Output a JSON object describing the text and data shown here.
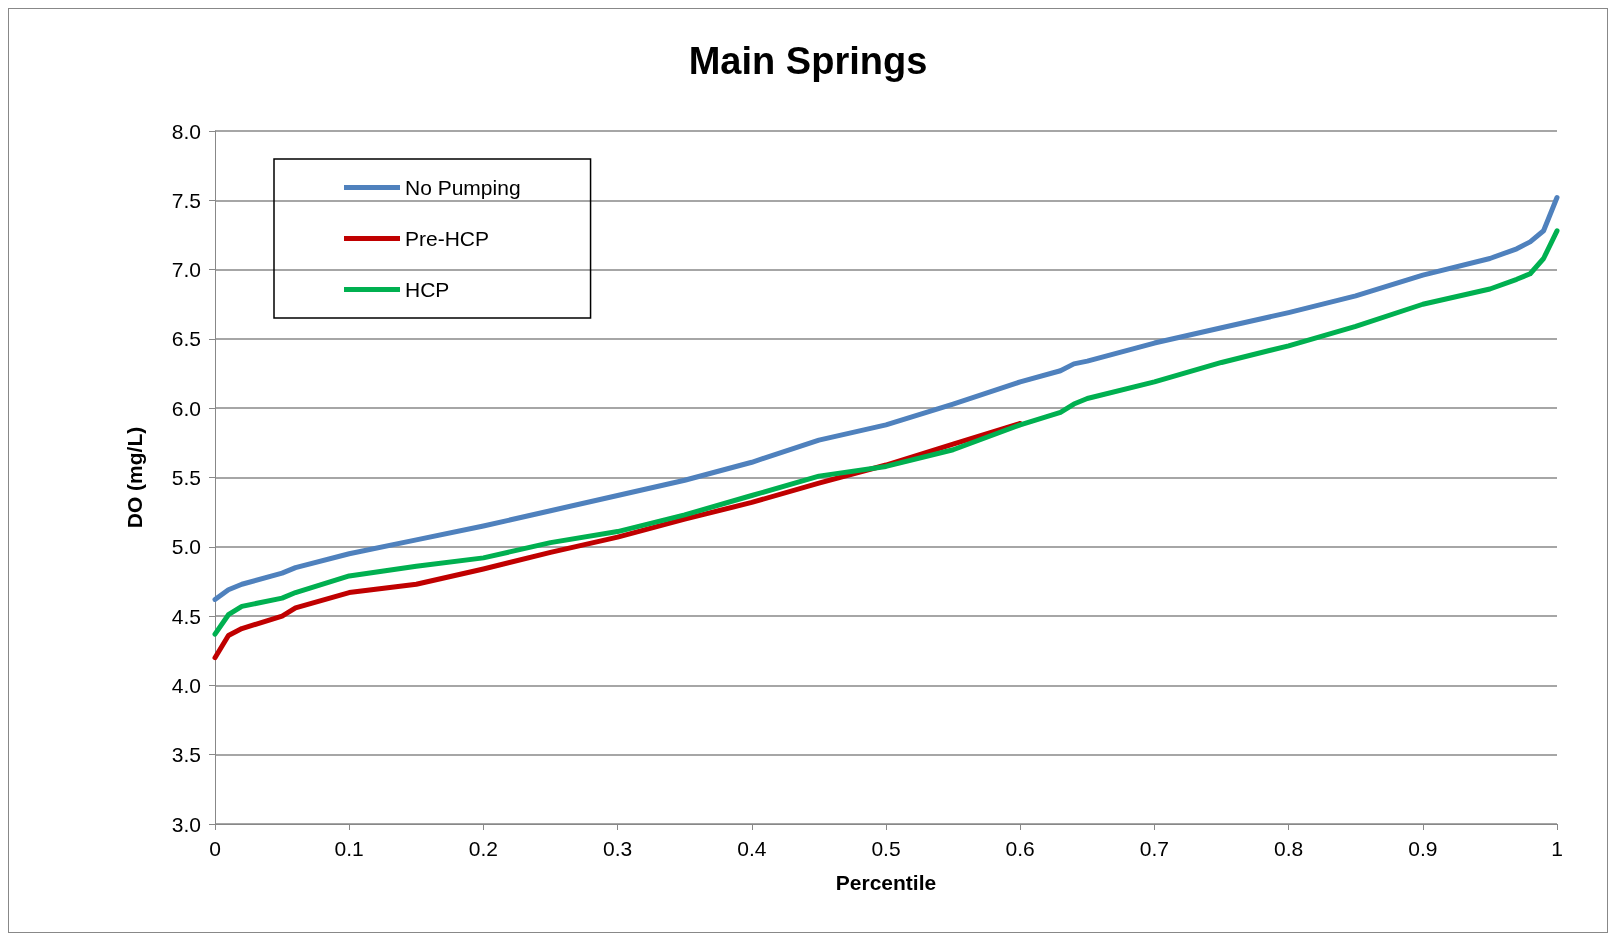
{
  "chart_data": {
    "type": "line",
    "title": "Main Springs",
    "xlabel": "Percentile",
    "ylabel": "DO (mg/L)",
    "xlim": [
      0,
      1
    ],
    "xticks": [
      0,
      0.1,
      0.2,
      0.3,
      0.4,
      0.5,
      0.6,
      0.7,
      0.8,
      0.9,
      1
    ],
    "ylim": [
      3,
      8
    ],
    "yticks": [
      {
        "value": 3,
        "label": "3.0"
      },
      {
        "value": 3.5,
        "label": "3.5"
      },
      {
        "value": 4,
        "label": "4.0"
      },
      {
        "value": 4.5,
        "label": "4.5"
      },
      {
        "value": 5,
        "label": "5.0"
      },
      {
        "value": 5.5,
        "label": "5.5"
      },
      {
        "value": 6,
        "label": "6.0"
      },
      {
        "value": 6.5,
        "label": "6.5"
      },
      {
        "value": 7,
        "label": "7.0"
      },
      {
        "value": 7.5,
        "label": "7.5"
      },
      {
        "value": 8,
        "label": "8.0"
      }
    ],
    "grid": "y",
    "legend": "top left",
    "marker": "none",
    "line_style": "solid",
    "x": [
      0,
      0.01,
      0.02,
      0.05,
      0.06,
      0.1,
      0.15,
      0.2,
      0.25,
      0.3,
      0.35,
      0.4,
      0.45,
      0.5,
      0.55,
      0.6,
      0.63,
      0.64,
      0.65,
      0.7,
      0.75,
      0.8,
      0.85,
      0.9,
      0.95,
      0.97,
      0.98,
      0.99,
      1
    ],
    "series": [
      {
        "name": "No Pumping",
        "color": "#4f81bd",
        "values": [
          4.62,
          4.69,
          4.73,
          4.81,
          4.85,
          4.95,
          5.05,
          5.15,
          5.26,
          5.37,
          5.48,
          5.61,
          5.77,
          5.88,
          6.03,
          6.19,
          6.27,
          6.32,
          6.34,
          6.47,
          6.58,
          6.69,
          6.81,
          6.96,
          7.08,
          7.15,
          7.2,
          7.28,
          7.52
        ]
      },
      {
        "name": "Pre-HCP",
        "color": "#c00000",
        "values": [
          4.2,
          4.36,
          4.41,
          4.5,
          4.56,
          4.67,
          4.73,
          4.84,
          4.96,
          5.07,
          5.2,
          5.32,
          5.46,
          5.59,
          5.74,
          5.89,
          null,
          null,
          null,
          null,
          null,
          null,
          null,
          null,
          null,
          null,
          null,
          null,
          null
        ]
      },
      {
        "name": "HCP",
        "color": "#00b050",
        "values": [
          4.37,
          4.51,
          4.57,
          4.63,
          4.67,
          4.79,
          4.86,
          4.92,
          5.03,
          5.11,
          5.23,
          5.37,
          5.51,
          5.58,
          5.7,
          5.88,
          5.97,
          6.03,
          6.07,
          6.19,
          6.33,
          6.45,
          6.59,
          6.75,
          6.86,
          6.93,
          6.97,
          7.08,
          7.28
        ]
      }
    ]
  }
}
